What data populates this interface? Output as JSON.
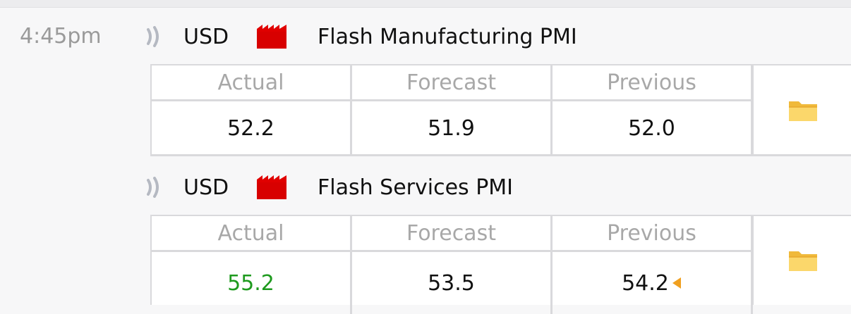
{
  "events": [
    {
      "time": "4:45pm",
      "currency": "USD",
      "title": "Flash Manufacturing PMI",
      "headers": [
        "Actual",
        "Forecast",
        "Previous"
      ],
      "actual": "52.2",
      "forecast": "51.9",
      "previous": "52.0",
      "impact_icon": "factory-icon-red",
      "detail_icon": "folder-icon"
    },
    {
      "currency": "USD",
      "title": "Flash Services PMI",
      "headers": [
        "Actual",
        "Forecast",
        "Previous"
      ],
      "actual": "55.2",
      "forecast": "53.5",
      "previous": "54.2",
      "actual_color": "#1e9a1e",
      "previous_revised_icon": "revised-arrow-icon",
      "impact_icon": "factory-icon-red",
      "detail_icon": "folder-icon"
    }
  ],
  "colors": {
    "impact_high": "#e00000",
    "folder": "#f5c54a",
    "positive": "#1e9a1e",
    "revised": "#f0a020"
  }
}
